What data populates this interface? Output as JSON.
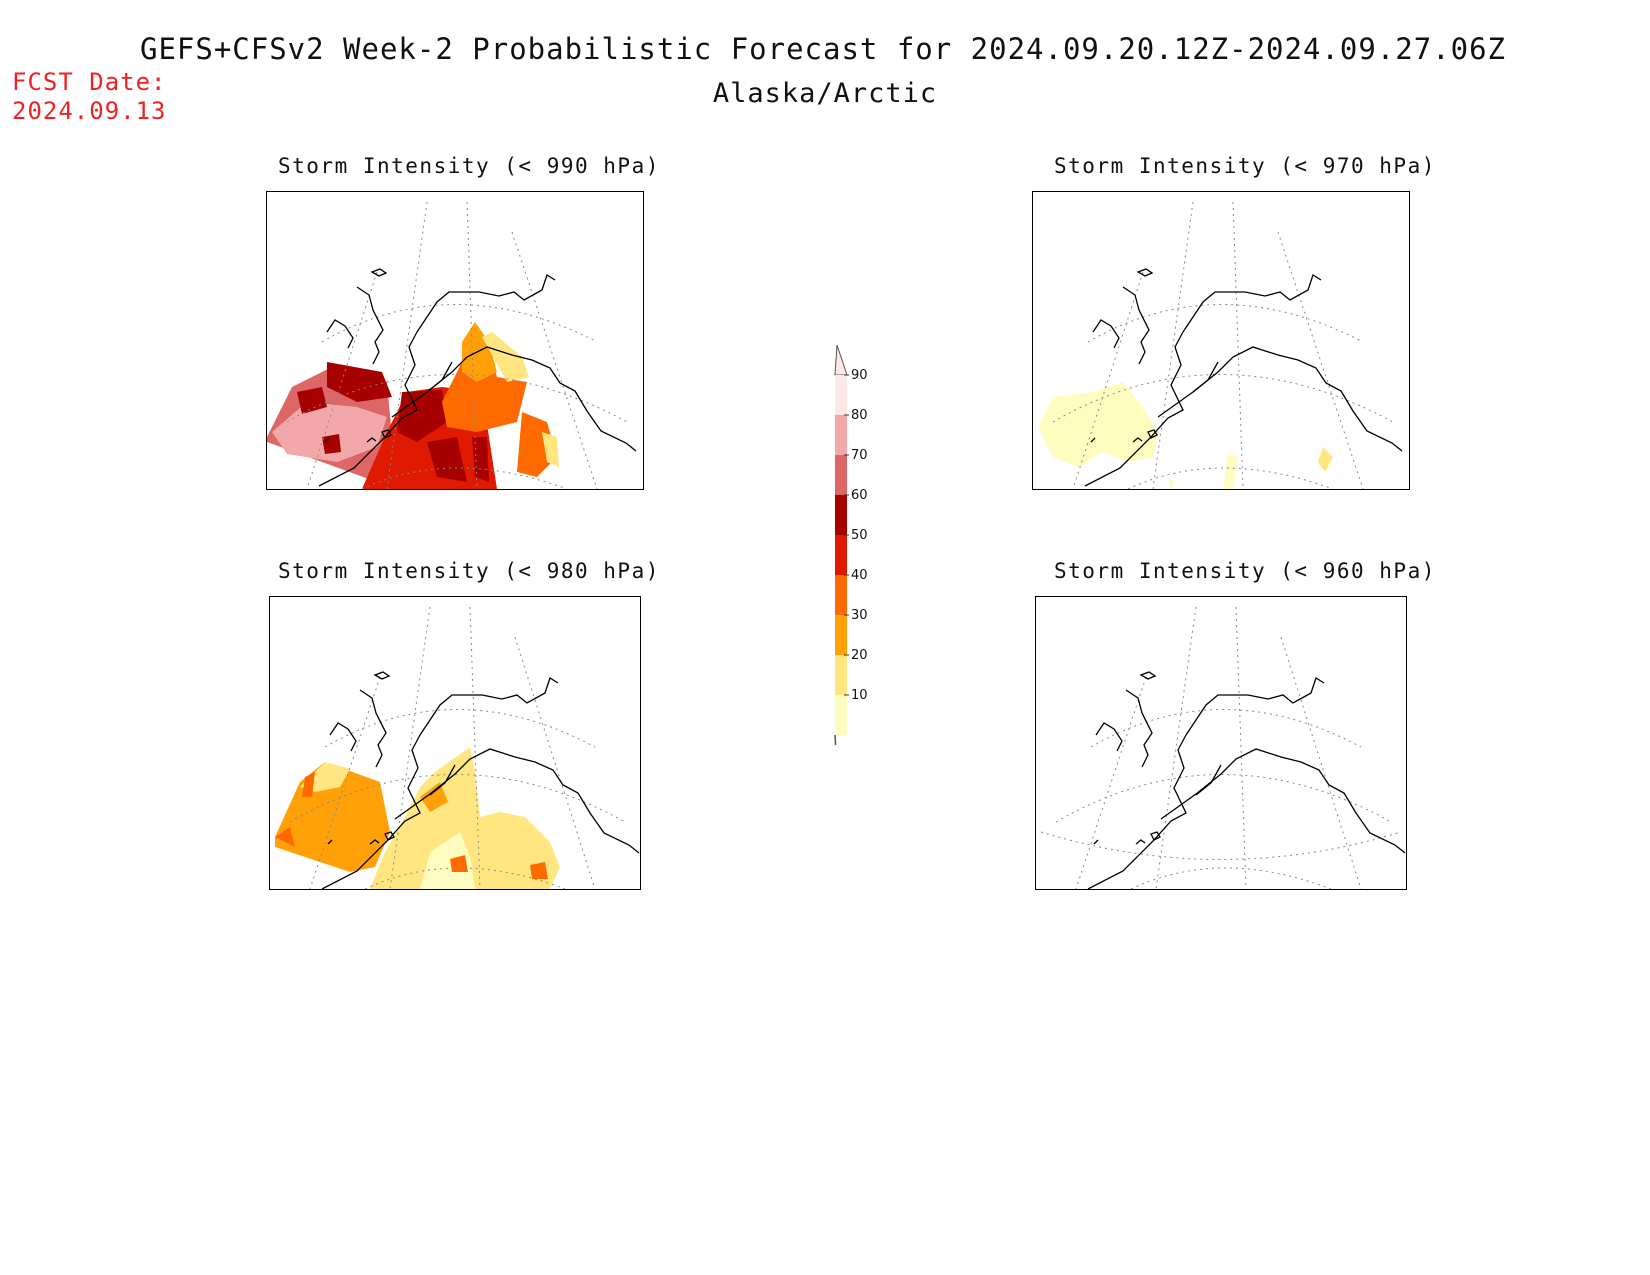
{
  "header": {
    "title": "GEFS+CFSv2 Week-2 Probabilistic Forecast for 2024.09.20.12Z-2024.09.27.06Z",
    "region": "Alaska/Arctic",
    "fcst_label": "FCST Date:",
    "fcst_date": "2024.09.13"
  },
  "panels": [
    {
      "id": "p990",
      "title": "Storm Intensity (< 990 hPa)"
    },
    {
      "id": "p970",
      "title": "Storm Intensity (< 970 hPa)"
    },
    {
      "id": "p980",
      "title": "Storm Intensity (< 980 hPa)"
    },
    {
      "id": "p960",
      "title": "Storm Intensity (< 960 hPa)"
    }
  ],
  "legend": {
    "levels": [
      "10",
      "20",
      "30",
      "40",
      "50",
      "60",
      "70",
      "80",
      "90"
    ],
    "colors": [
      "#fffcc0",
      "#ffe680",
      "#ffa008",
      "#ff6a00",
      "#e01a00",
      "#a60000",
      "#dd6666",
      "#f2a8a8",
      "#fde8e8"
    ]
  }
}
